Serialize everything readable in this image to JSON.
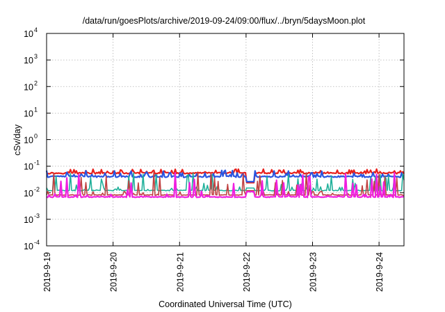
{
  "chart_data": {
    "type": "line",
    "title": "/data/run/goesPlots/archive/2019-09-24/09:00/flux/../bryn/5daysMoon.plot",
    "xlabel": "Coordinated Universal Time (UTC)",
    "ylabel": "cSv/day",
    "yscale": "log",
    "ylim": [
      0.0001,
      10000
    ],
    "xlim": [
      "2019-09-19 00:00",
      "2019-09-24 09:00"
    ],
    "grid": true,
    "legend": "none",
    "y_ticks": [
      {
        "value": 0.0001,
        "base": "10",
        "exp": "-4"
      },
      {
        "value": 0.001,
        "base": "10",
        "exp": "-3"
      },
      {
        "value": 0.01,
        "base": "10",
        "exp": "-2"
      },
      {
        "value": 0.1,
        "base": "10",
        "exp": "-1"
      },
      {
        "value": 1,
        "base": "10",
        "exp": "0"
      },
      {
        "value": 10,
        "base": "10",
        "exp": "1"
      },
      {
        "value": 100,
        "base": "10",
        "exp": "2"
      },
      {
        "value": 1000,
        "base": "10",
        "exp": "3"
      },
      {
        "value": 10000,
        "base": "10",
        "exp": "4"
      }
    ],
    "x_ticks": [
      {
        "date": "2019-09-19",
        "label": "2019-9-19"
      },
      {
        "date": "2019-09-20",
        "label": "2019-9-20"
      },
      {
        "date": "2019-09-21",
        "label": "2019-9-21"
      },
      {
        "date": "2019-09-22",
        "label": "2019-9-22"
      },
      {
        "date": "2019-09-23",
        "label": "2019-9-23"
      },
      {
        "date": "2019-09-24",
        "label": "2019-9-24"
      }
    ],
    "gap": [
      "2019-09-22 00:00",
      "2019-09-22 03:00"
    ],
    "series": [
      {
        "color": "#e8201c",
        "base": 0.058,
        "lo": 0.045,
        "hi": 0.075,
        "dip": 0.024,
        "width": 2.2
      },
      {
        "color": "#2a55e0",
        "base": 0.043,
        "lo": 0.033,
        "hi": 0.07,
        "dip": 0.026,
        "width": 2.2
      },
      {
        "color": "#20b09a",
        "base": 0.0125,
        "lo": 0.011,
        "hi": 0.06,
        "dip": 0.015,
        "width": 1.6
      },
      {
        "color": "#c04040",
        "base": 0.0085,
        "lo": 0.0075,
        "hi": 0.06,
        "dip": 0.012,
        "width": 1.6
      },
      {
        "color": "#f020e0",
        "base": 0.0072,
        "lo": 0.0062,
        "hi": 0.06,
        "dip": 0.011,
        "width": 2.2
      }
    ]
  }
}
